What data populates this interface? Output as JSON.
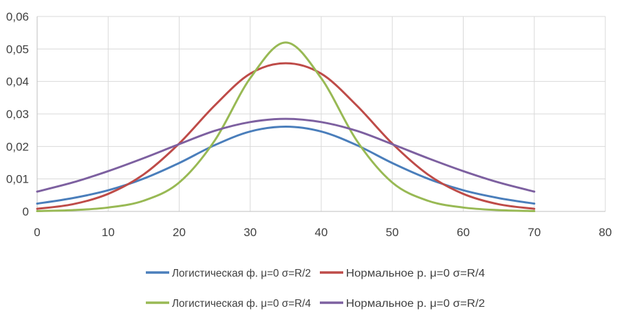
{
  "chart_data": {
    "type": "line",
    "title": "",
    "xlabel": "",
    "ylabel": "",
    "xlim": [
      0,
      80
    ],
    "ylim": [
      0,
      0.06
    ],
    "x_ticks": [
      "0",
      "10",
      "20",
      "30",
      "40",
      "50",
      "60",
      "70",
      "80"
    ],
    "y_ticks": [
      "0",
      "0,01",
      "0,02",
      "0,03",
      "0,04",
      "0,05",
      "0,06"
    ],
    "grid": true,
    "legend_position": "bottom",
    "x": [
      0,
      5,
      10,
      15,
      20,
      25,
      30,
      35,
      40,
      45,
      50,
      55,
      60,
      65,
      70
    ],
    "series": [
      {
        "name": "Логистическая ф. μ=0 σ=R/2",
        "color": "#4a7ebb",
        "values": [
          0.0024,
          0.0041,
          0.0065,
          0.0101,
          0.0149,
          0.0204,
          0.0246,
          0.0261,
          0.0246,
          0.0204,
          0.0149,
          0.0101,
          0.0065,
          0.0041,
          0.0024
        ]
      },
      {
        "name": "Нормальное р. μ=0 σ=R/4",
        "color": "#be4b48",
        "values": [
          0.0008,
          0.0022,
          0.0054,
          0.0114,
          0.0209,
          0.0326,
          0.0424,
          0.0456,
          0.0424,
          0.0326,
          0.0209,
          0.0114,
          0.0054,
          0.0022,
          0.0008
        ]
      },
      {
        "name": "Логистическая ф. μ=0 σ=R/4",
        "color": "#98b954",
        "values": [
          0.0001,
          0.0004,
          0.0012,
          0.0033,
          0.0089,
          0.0218,
          0.041,
          0.052,
          0.041,
          0.0218,
          0.0089,
          0.0033,
          0.0012,
          0.0004,
          0.0001
        ]
      },
      {
        "name": "Нормальное р. μ=0 σ=R/2",
        "color": "#7d60a0",
        "values": [
          0.0061,
          0.0089,
          0.0124,
          0.0164,
          0.0207,
          0.0248,
          0.0275,
          0.0285,
          0.0275,
          0.0248,
          0.0207,
          0.0164,
          0.0124,
          0.0089,
          0.0061
        ]
      }
    ]
  }
}
